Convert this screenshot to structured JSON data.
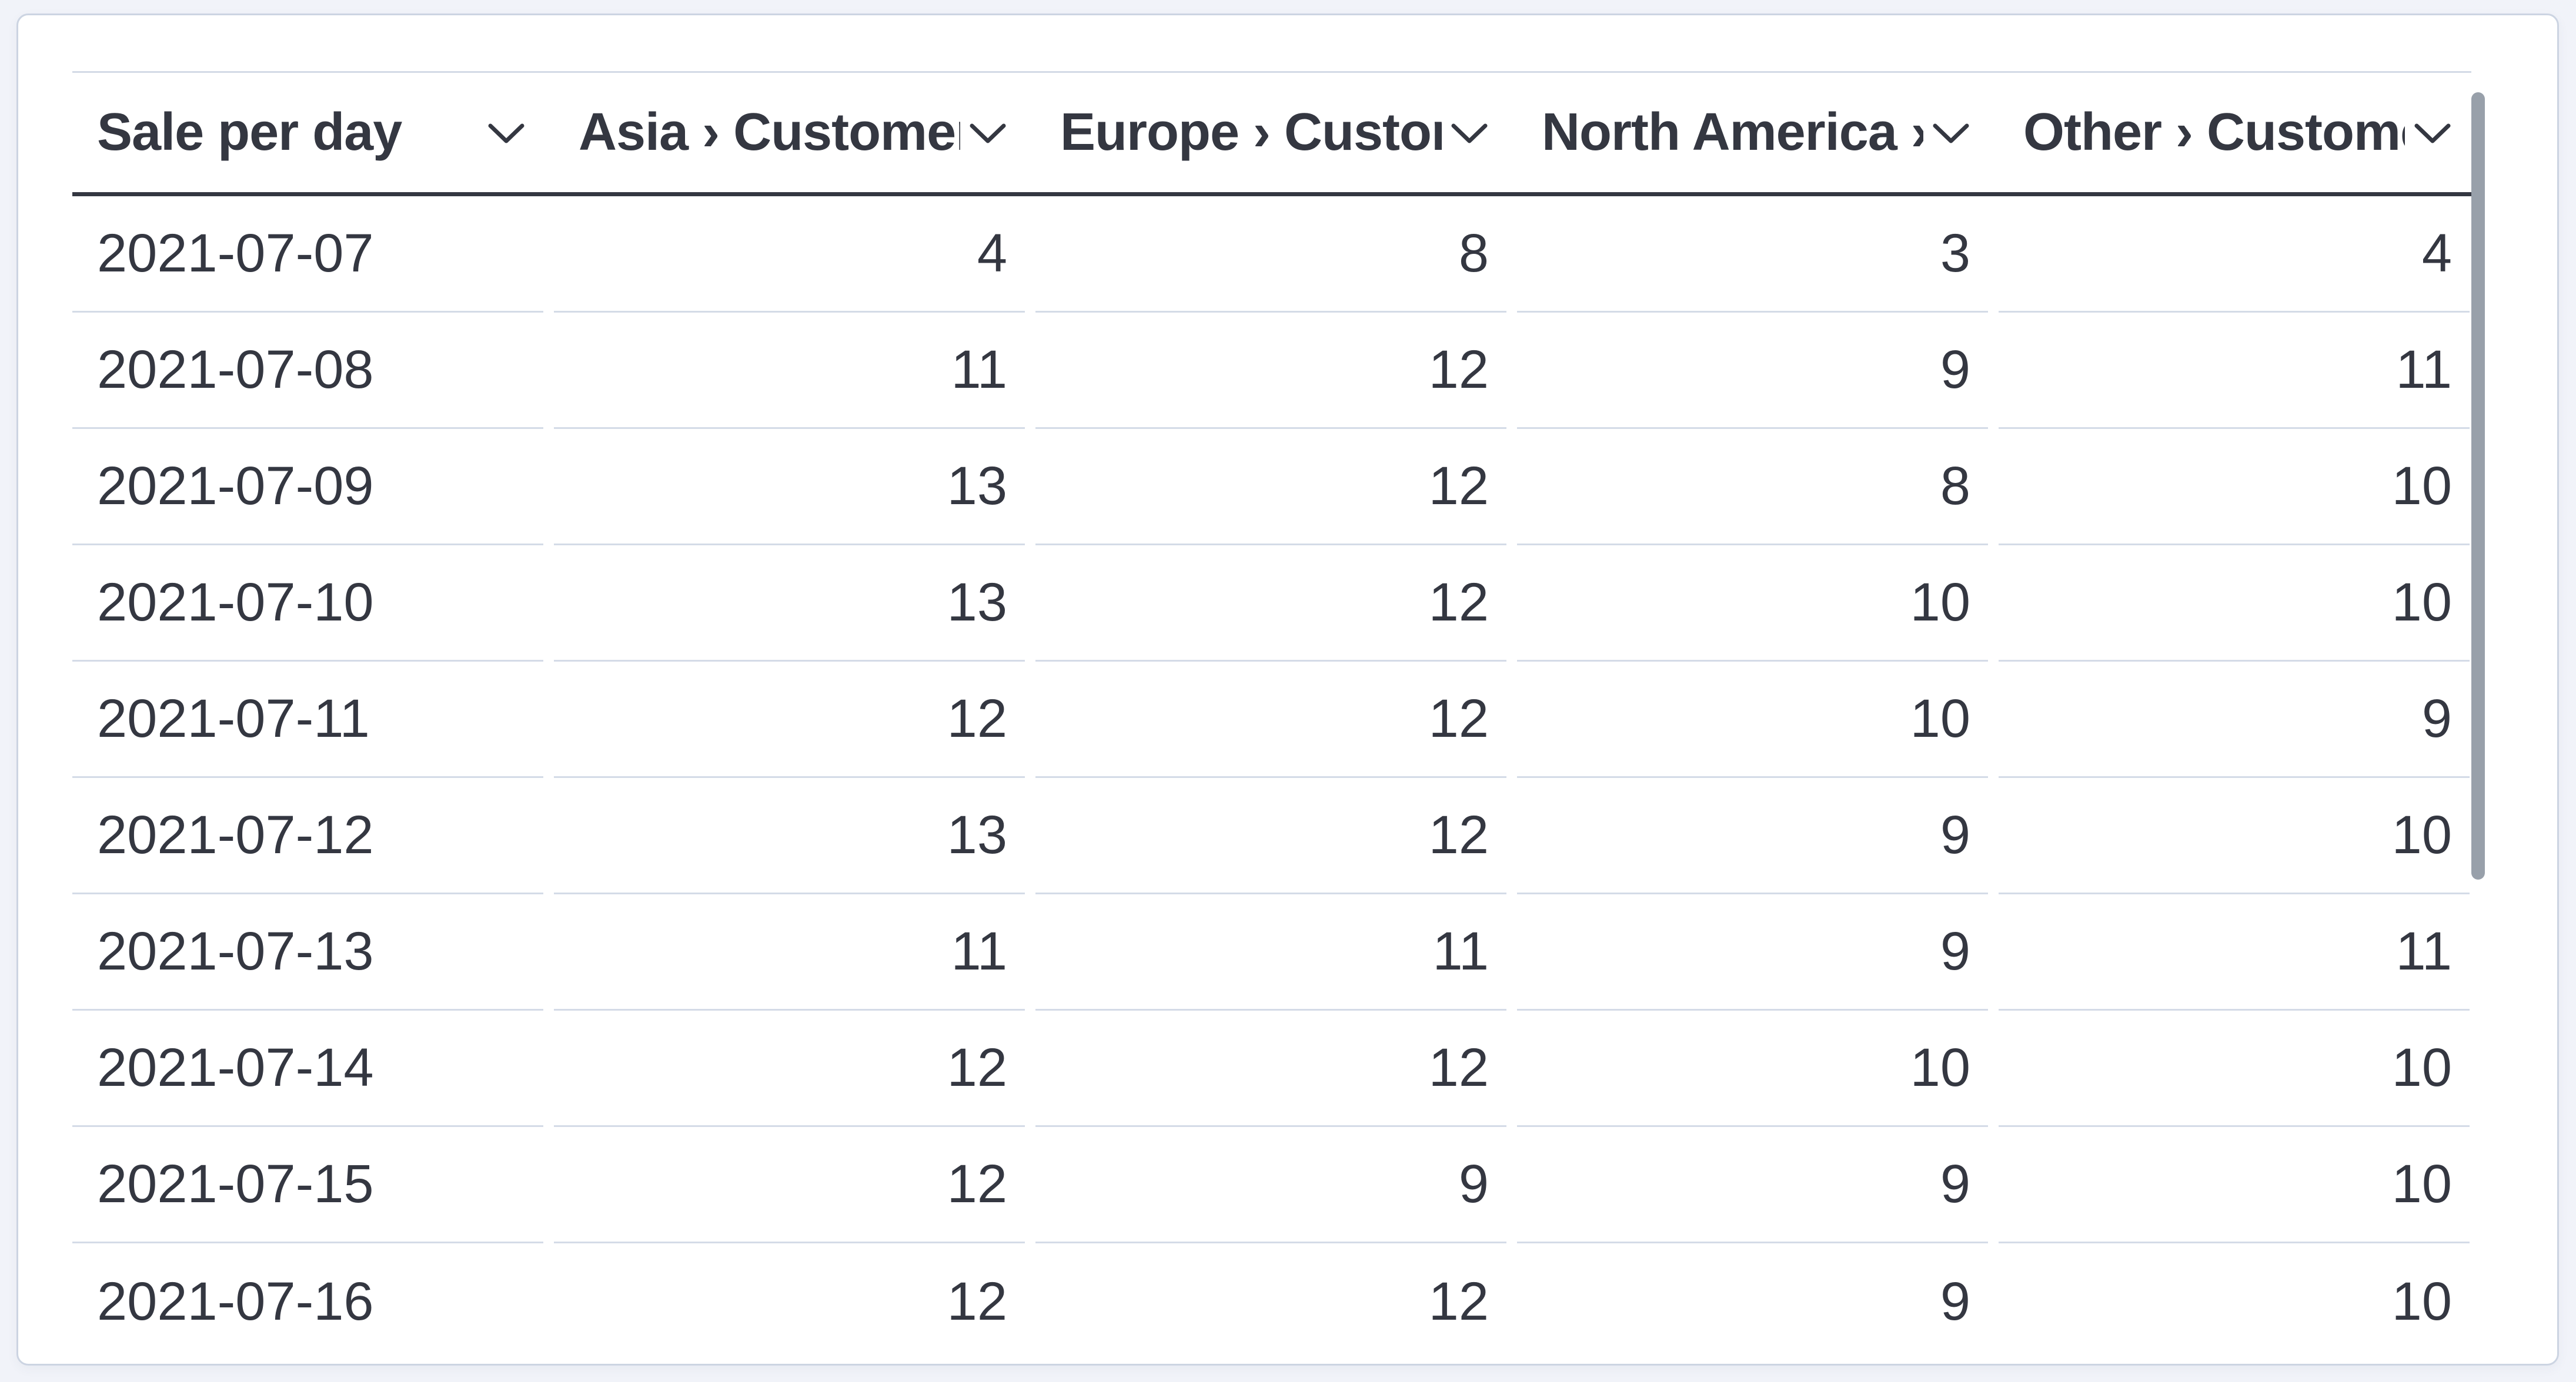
{
  "panel": {
    "kind": "data-table-panel"
  },
  "table": {
    "columns": [
      {
        "id": "sale-per-day",
        "label": "Sale per day",
        "align": "left"
      },
      {
        "id": "asia-customers",
        "label": "Asia › Customers",
        "align": "right"
      },
      {
        "id": "europe-customers",
        "label": "Europe › Customers",
        "align": "right"
      },
      {
        "id": "north-america-customers",
        "label": "North America › Customers",
        "align": "right"
      },
      {
        "id": "other-customers",
        "label": "Other › Customers",
        "align": "right"
      }
    ],
    "rows": [
      [
        "2021-07-07",
        "4",
        "8",
        "3",
        "4"
      ],
      [
        "2021-07-08",
        "11",
        "12",
        "9",
        "11"
      ],
      [
        "2021-07-09",
        "13",
        "12",
        "8",
        "10"
      ],
      [
        "2021-07-10",
        "13",
        "12",
        "10",
        "10"
      ],
      [
        "2021-07-11",
        "12",
        "12",
        "10",
        "9"
      ],
      [
        "2021-07-12",
        "13",
        "12",
        "9",
        "10"
      ],
      [
        "2021-07-13",
        "11",
        "11",
        "9",
        "11"
      ],
      [
        "2021-07-14",
        "12",
        "12",
        "10",
        "10"
      ],
      [
        "2021-07-15",
        "12",
        "9",
        "9",
        "10"
      ],
      [
        "2021-07-16",
        "12",
        "12",
        "9",
        "10"
      ]
    ]
  },
  "chart_data": {
    "type": "table",
    "title": "Sale per day",
    "categories": [
      "2021-07-07",
      "2021-07-08",
      "2021-07-09",
      "2021-07-10",
      "2021-07-11",
      "2021-07-12",
      "2021-07-13",
      "2021-07-14",
      "2021-07-15",
      "2021-07-16"
    ],
    "series": [
      {
        "name": "Asia › Customers",
        "values": [
          4,
          11,
          13,
          13,
          12,
          13,
          11,
          12,
          12,
          12
        ]
      },
      {
        "name": "Europe › Customers",
        "values": [
          8,
          12,
          12,
          12,
          12,
          12,
          11,
          12,
          9,
          12
        ]
      },
      {
        "name": "North America › Customers",
        "values": [
          3,
          9,
          8,
          10,
          10,
          9,
          9,
          10,
          9,
          9
        ]
      },
      {
        "name": "Other › Customers",
        "values": [
          4,
          11,
          10,
          10,
          9,
          10,
          11,
          10,
          10,
          10
        ]
      }
    ]
  },
  "icons": {
    "column_menu": "chevron-down-icon"
  },
  "colors": {
    "page_background": "#f1f3f9",
    "panel_background": "#ffffff",
    "panel_border": "#ccd4e2",
    "header_underline": "#343741",
    "row_border": "#d4dbe7",
    "text": "#343741",
    "scrollbar_thumb": "#98a0aa"
  }
}
